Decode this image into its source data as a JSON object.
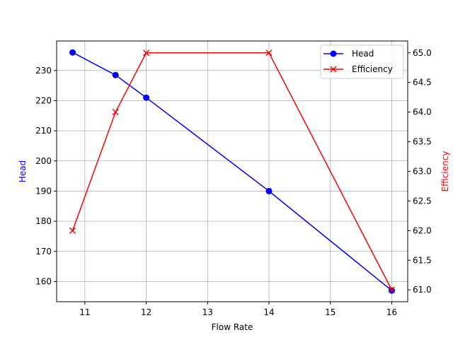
{
  "chart_data": {
    "type": "line",
    "title": "",
    "xlabel": "Flow Rate",
    "ylabel": "Head",
    "ylabel_right": "Efficiency",
    "x": [
      10.8,
      11.5,
      12,
      14,
      16
    ],
    "xlim": [
      10.54,
      16.26
    ],
    "ylim": [
      153.3,
      239.8
    ],
    "ylim_right": [
      60.8,
      65.2
    ],
    "x_ticks": [
      "11",
      "12",
      "13",
      "14",
      "15",
      "16"
    ],
    "y_ticks": [
      "160",
      "170",
      "180",
      "190",
      "200",
      "210",
      "220",
      "230"
    ],
    "y_ticks_right": [
      "61.0",
      "61.5",
      "62.0",
      "62.5",
      "63.0",
      "63.5",
      "64.0",
      "64.5",
      "65.0"
    ],
    "grid": true,
    "legend_position": "upper right",
    "series": [
      {
        "name": "Head",
        "axis": "left",
        "color": "#0000ff",
        "marker": "circle",
        "values": [
          236,
          228.5,
          221,
          190,
          157
        ]
      },
      {
        "name": "Efficiency",
        "axis": "right",
        "color": "#ff0000",
        "marker": "x",
        "values": [
          62,
          64,
          65,
          65,
          61
        ]
      }
    ]
  }
}
